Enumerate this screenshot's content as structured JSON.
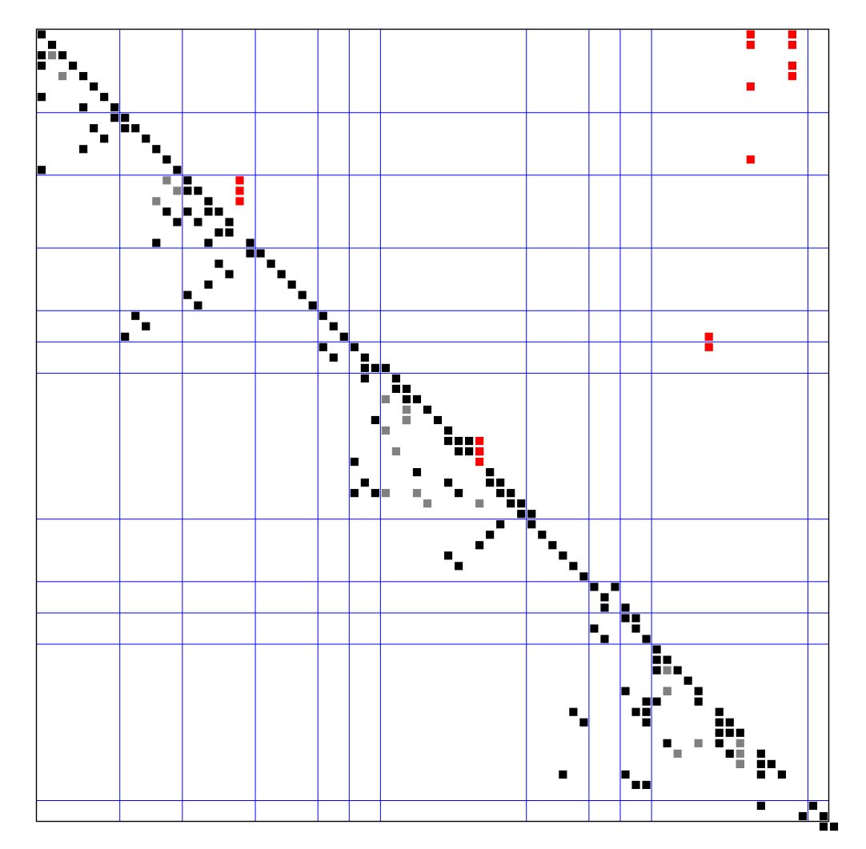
{
  "chart_data": {
    "type": "heatmap",
    "grid_size": 76,
    "block_boundaries": [
      0,
      8,
      14,
      21,
      27,
      30,
      33,
      47,
      53,
      56,
      59,
      74,
      76
    ],
    "colors": {
      "block_line": "#0000ff",
      "frame": "#000000",
      "black": "#000000",
      "gray": "#808080",
      "red": "#ff0000",
      "background": "#ffffff"
    },
    "cells": {
      "black": [
        [
          0,
          0
        ],
        [
          1,
          1
        ],
        [
          2,
          0
        ],
        [
          2,
          2
        ],
        [
          3,
          0
        ],
        [
          3,
          3
        ],
        [
          4,
          4
        ],
        [
          5,
          5
        ],
        [
          6,
          0
        ],
        [
          6,
          6
        ],
        [
          7,
          4
        ],
        [
          7,
          7
        ],
        [
          8,
          7
        ],
        [
          8,
          8
        ],
        [
          9,
          5
        ],
        [
          9,
          8
        ],
        [
          9,
          9
        ],
        [
          10,
          6
        ],
        [
          10,
          10
        ],
        [
          11,
          4
        ],
        [
          11,
          11
        ],
        [
          12,
          12
        ],
        [
          13,
          0
        ],
        [
          13,
          13
        ],
        [
          14,
          14
        ],
        [
          15,
          14
        ],
        [
          15,
          15
        ],
        [
          16,
          16
        ],
        [
          17,
          12
        ],
        [
          17,
          14
        ],
        [
          17,
          16
        ],
        [
          17,
          17
        ],
        [
          18,
          13
        ],
        [
          18,
          15
        ],
        [
          18,
          18
        ],
        [
          19,
          17
        ],
        [
          19,
          18
        ],
        [
          20,
          11
        ],
        [
          20,
          16
        ],
        [
          20,
          20
        ],
        [
          21,
          20
        ],
        [
          21,
          21
        ],
        [
          22,
          17
        ],
        [
          22,
          22
        ],
        [
          23,
          18
        ],
        [
          23,
          23
        ],
        [
          24,
          16
        ],
        [
          24,
          24
        ],
        [
          25,
          14
        ],
        [
          25,
          25
        ],
        [
          26,
          15
        ],
        [
          26,
          26
        ],
        [
          27,
          9
        ],
        [
          27,
          27
        ],
        [
          28,
          10
        ],
        [
          28,
          28
        ],
        [
          29,
          8
        ],
        [
          29,
          29
        ],
        [
          30,
          27
        ],
        [
          30,
          30
        ],
        [
          31,
          28
        ],
        [
          31,
          31
        ],
        [
          32,
          31
        ],
        [
          32,
          32
        ],
        [
          32,
          33
        ],
        [
          33,
          31
        ],
        [
          33,
          34
        ],
        [
          34,
          34
        ],
        [
          34,
          35
        ],
        [
          35,
          35
        ],
        [
          35,
          36
        ],
        [
          36,
          37
        ],
        [
          37,
          32
        ],
        [
          37,
          35
        ],
        [
          37,
          38
        ],
        [
          38,
          39
        ],
        [
          39,
          39
        ],
        [
          39,
          40
        ],
        [
          39,
          41
        ],
        [
          40,
          40
        ],
        [
          40,
          41
        ],
        [
          40,
          42
        ],
        [
          41,
          30
        ],
        [
          42,
          36
        ],
        [
          42,
          43
        ],
        [
          43,
          31
        ],
        [
          43,
          39
        ],
        [
          43,
          43
        ],
        [
          43,
          44
        ],
        [
          44,
          30
        ],
        [
          44,
          32
        ],
        [
          44,
          40
        ],
        [
          44,
          44
        ],
        [
          44,
          45
        ],
        [
          45,
          45
        ],
        [
          45,
          46
        ],
        [
          46,
          46
        ],
        [
          46,
          47
        ],
        [
          47,
          44
        ],
        [
          47,
          47
        ],
        [
          48,
          43
        ],
        [
          48,
          48
        ],
        [
          49,
          42
        ],
        [
          49,
          49
        ],
        [
          50,
          39
        ],
        [
          50,
          50
        ],
        [
          51,
          40
        ],
        [
          51,
          51
        ],
        [
          52,
          52
        ],
        [
          53,
          53
        ],
        [
          53,
          55
        ],
        [
          54,
          54
        ],
        [
          55,
          54
        ],
        [
          55,
          56
        ],
        [
          56,
          56
        ],
        [
          56,
          57
        ],
        [
          57,
          53
        ],
        [
          57,
          57
        ],
        [
          58,
          54
        ],
        [
          58,
          58
        ],
        [
          59,
          59
        ],
        [
          60,
          59
        ],
        [
          60,
          60
        ],
        [
          61,
          59
        ],
        [
          61,
          61
        ],
        [
          62,
          62
        ],
        [
          63,
          56
        ],
        [
          63,
          60
        ],
        [
          63,
          63
        ],
        [
          64,
          58
        ],
        [
          64,
          59
        ],
        [
          64,
          63
        ],
        [
          65,
          51
        ],
        [
          65,
          57
        ],
        [
          65,
          58
        ],
        [
          65,
          65
        ],
        [
          66,
          52
        ],
        [
          66,
          58
        ],
        [
          66,
          65
        ],
        [
          66,
          66
        ],
        [
          67,
          65
        ],
        [
          67,
          66
        ],
        [
          67,
          67
        ],
        [
          68,
          60
        ],
        [
          68,
          65
        ],
        [
          69,
          66
        ],
        [
          69,
          69
        ],
        [
          70,
          67
        ],
        [
          70,
          69
        ],
        [
          70,
          70
        ],
        [
          71,
          50
        ],
        [
          71,
          56
        ],
        [
          71,
          69
        ],
        [
          71,
          71
        ],
        [
          72,
          57
        ],
        [
          72,
          58
        ],
        [
          74,
          69
        ],
        [
          74,
          74
        ],
        [
          75,
          73
        ],
        [
          75,
          75
        ],
        [
          76,
          75
        ],
        [
          76,
          76
        ]
      ],
      "gray": [
        [
          2,
          1
        ],
        [
          4,
          2
        ],
        [
          14,
          12
        ],
        [
          15,
          13
        ],
        [
          16,
          11
        ],
        [
          35,
          33
        ],
        [
          36,
          35
        ],
        [
          37,
          35
        ],
        [
          38,
          33
        ],
        [
          40,
          34
        ],
        [
          44,
          33
        ],
        [
          44,
          36
        ],
        [
          45,
          37
        ],
        [
          45,
          42
        ],
        [
          61,
          60
        ],
        [
          63,
          60
        ],
        [
          68,
          63
        ],
        [
          68,
          67
        ],
        [
          69,
          61
        ],
        [
          69,
          67
        ],
        [
          70,
          67
        ]
      ],
      "red": [
        [
          0,
          68
        ],
        [
          0,
          72
        ],
        [
          1,
          68
        ],
        [
          1,
          72
        ],
        [
          3,
          72
        ],
        [
          4,
          72
        ],
        [
          5,
          68
        ],
        [
          12,
          68
        ],
        [
          14,
          19
        ],
        [
          15,
          19
        ],
        [
          16,
          19
        ],
        [
          29,
          64
        ],
        [
          30,
          64
        ],
        [
          39,
          42
        ],
        [
          40,
          42
        ],
        [
          41,
          42
        ]
      ]
    }
  }
}
